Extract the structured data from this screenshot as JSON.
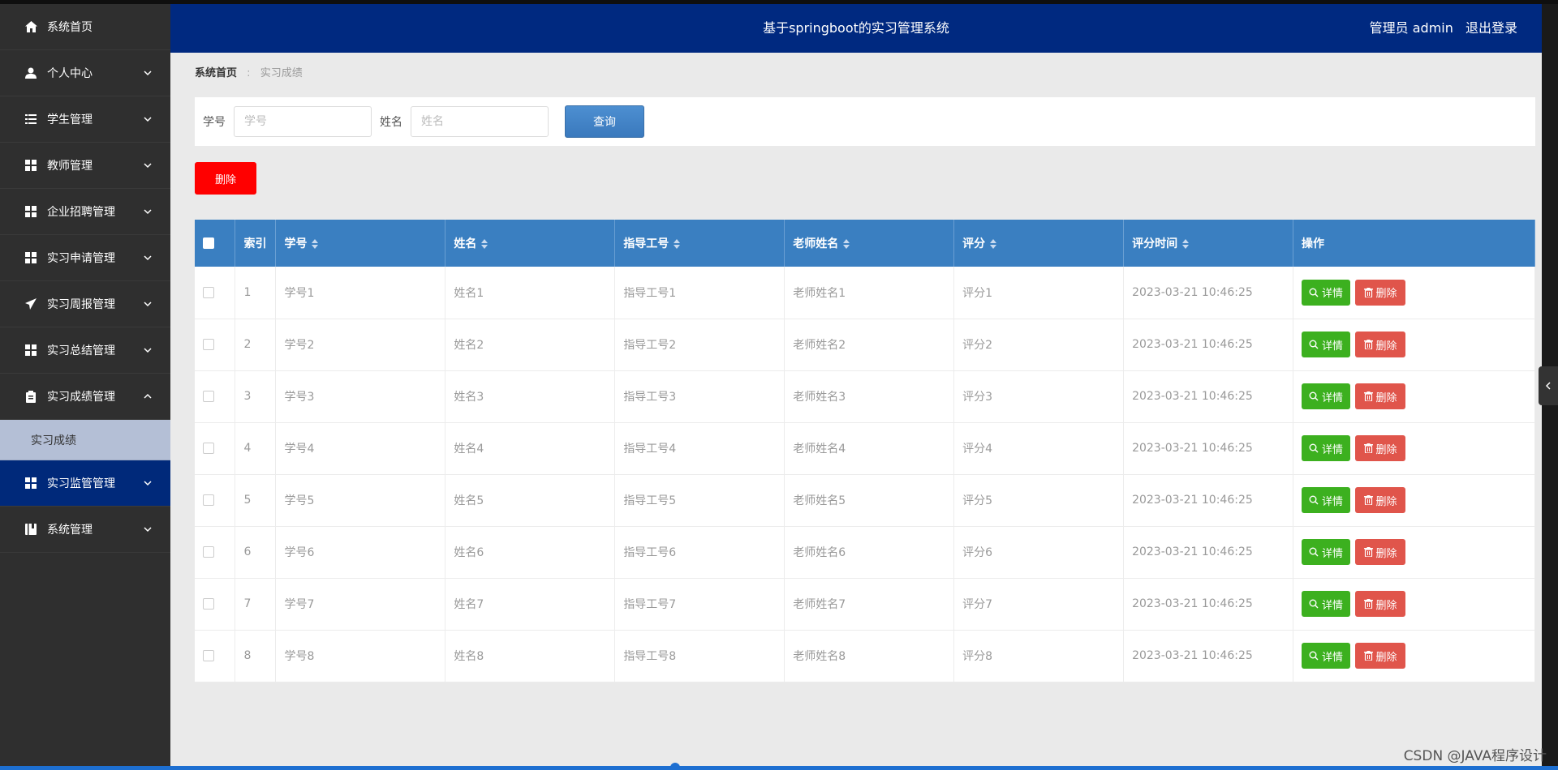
{
  "header": {
    "title": "基于springboot的实习管理系统",
    "user_label": "管理员 admin",
    "logout_label": "退出登录"
  },
  "sidebar": {
    "items": [
      {
        "label": "系统首页",
        "icon": "home-icon",
        "expandable": false
      },
      {
        "label": "个人中心",
        "icon": "user-icon",
        "expandable": true
      },
      {
        "label": "学生管理",
        "icon": "list-icon",
        "expandable": true
      },
      {
        "label": "教师管理",
        "icon": "grid-icon",
        "expandable": true
      },
      {
        "label": "企业招聘管理",
        "icon": "grid-icon",
        "expandable": true
      },
      {
        "label": "实习申请管理",
        "icon": "grid-icon",
        "expandable": true
      },
      {
        "label": "实习周报管理",
        "icon": "send-icon",
        "expandable": true
      },
      {
        "label": "实习总结管理",
        "icon": "grid-icon",
        "expandable": true
      },
      {
        "label": "实习成绩管理",
        "icon": "clipboard-icon",
        "expandable": true,
        "expanded": true
      },
      {
        "label": "实习监管管理",
        "icon": "grid-icon",
        "expandable": true,
        "active": true
      },
      {
        "label": "系统管理",
        "icon": "book-icon",
        "expandable": true
      }
    ],
    "submenu": {
      "label": "实习成绩"
    }
  },
  "breadcrumb": {
    "home": "系统首页",
    "current": "实习成绩"
  },
  "search": {
    "student_no_label": "学号",
    "student_no_placeholder": "学号",
    "name_label": "姓名",
    "name_placeholder": "姓名",
    "query_label": "查询"
  },
  "toolbar": {
    "delete_label": "删除"
  },
  "table": {
    "columns": [
      "索引",
      "学号",
      "姓名",
      "指导工号",
      "老师姓名",
      "评分",
      "评分时间",
      "操作"
    ],
    "detail_label": "详情",
    "delete_label": "删除",
    "rows": [
      {
        "index": "1",
        "student_no": "学号1",
        "name": "姓名1",
        "teacher_no": "指导工号1",
        "teacher_name": "老师姓名1",
        "score": "评分1",
        "time": "2023-03-21 10:46:25"
      },
      {
        "index": "2",
        "student_no": "学号2",
        "name": "姓名2",
        "teacher_no": "指导工号2",
        "teacher_name": "老师姓名2",
        "score": "评分2",
        "time": "2023-03-21 10:46:25"
      },
      {
        "index": "3",
        "student_no": "学号3",
        "name": "姓名3",
        "teacher_no": "指导工号3",
        "teacher_name": "老师姓名3",
        "score": "评分3",
        "time": "2023-03-21 10:46:25"
      },
      {
        "index": "4",
        "student_no": "学号4",
        "name": "姓名4",
        "teacher_no": "指导工号4",
        "teacher_name": "老师姓名4",
        "score": "评分4",
        "time": "2023-03-21 10:46:25"
      },
      {
        "index": "5",
        "student_no": "学号5",
        "name": "姓名5",
        "teacher_no": "指导工号5",
        "teacher_name": "老师姓名5",
        "score": "评分5",
        "time": "2023-03-21 10:46:25"
      },
      {
        "index": "6",
        "student_no": "学号6",
        "name": "姓名6",
        "teacher_no": "指导工号6",
        "teacher_name": "老师姓名6",
        "score": "评分6",
        "time": "2023-03-21 10:46:25"
      },
      {
        "index": "7",
        "student_no": "学号7",
        "name": "姓名7",
        "teacher_no": "指导工号7",
        "teacher_name": "老师姓名7",
        "score": "评分7",
        "time": "2023-03-21 10:46:25"
      },
      {
        "index": "8",
        "student_no": "学号8",
        "name": "姓名8",
        "teacher_no": "指导工号8",
        "teacher_name": "老师姓名8",
        "score": "评分8",
        "time": "2023-03-21 10:46:25"
      }
    ]
  },
  "watermark": "CSDN @JAVA程序设计",
  "colors": {
    "header_bg": "#002980",
    "sidebar_bg": "#2f2f2f",
    "table_header_bg": "#3a7fc1",
    "detail_btn": "#3cb01f",
    "delete_btn": "#e0554b",
    "delete_top_btn": "#ff0000"
  }
}
